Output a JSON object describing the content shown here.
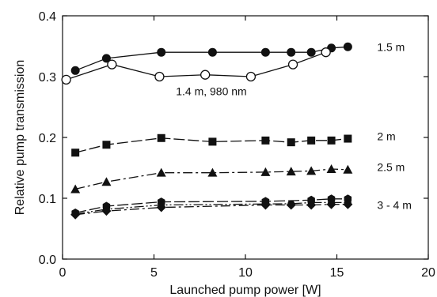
{
  "chart_data": {
    "type": "line",
    "title": "",
    "xlabel": "Launched pump power  [W]",
    "ylabel": "Relative pump transmission",
    "xlim": [
      0,
      20
    ],
    "ylim": [
      0.0,
      0.4
    ],
    "xticks": [
      "0",
      "5",
      "10",
      "15",
      "20"
    ],
    "yticks": [
      "0.0",
      "0.1",
      "0.2",
      "0.3",
      "0.4"
    ],
    "grid": false,
    "series": [
      {
        "name": "1.5 m",
        "marker": "filled-circle",
        "line": "solid",
        "x": [
          0.7,
          2.4,
          5.4,
          8.2,
          11.1,
          12.5,
          13.6,
          14.7,
          15.6
        ],
        "y": [
          0.31,
          0.33,
          0.34,
          0.34,
          0.34,
          0.34,
          0.34,
          0.347,
          0.349
        ]
      },
      {
        "name": "1.4 m, 980 nm",
        "marker": "open-circle",
        "line": "solid",
        "x": [
          0.2,
          2.7,
          5.3,
          7.8,
          10.3,
          12.6,
          14.4
        ],
        "y": [
          0.295,
          0.32,
          0.3,
          0.303,
          0.3,
          0.32,
          0.34
        ]
      },
      {
        "name": "2 m",
        "marker": "filled-square",
        "line": "long-dash",
        "x": [
          0.7,
          2.4,
          5.4,
          8.2,
          11.1,
          12.5,
          13.6,
          14.7,
          15.6
        ],
        "y": [
          0.175,
          0.188,
          0.199,
          0.193,
          0.195,
          0.192,
          0.195,
          0.195,
          0.198
        ]
      },
      {
        "name": "2.5 m",
        "marker": "filled-triangle",
        "line": "dash-dot",
        "x": [
          0.7,
          2.4,
          5.4,
          8.2,
          11.1,
          12.5,
          13.6,
          14.7,
          15.6
        ],
        "y": [
          0.115,
          0.127,
          0.142,
          0.142,
          0.143,
          0.144,
          0.145,
          0.148,
          0.147
        ]
      },
      {
        "name": "3 - 4 m (hexagon)",
        "marker": "filled-hexagon",
        "line": "long-dash",
        "x": [
          0.7,
          2.4,
          5.4,
          11.1,
          13.6,
          14.7,
          15.6
        ],
        "y": [
          0.076,
          0.087,
          0.094,
          0.095,
          0.097,
          0.099,
          0.099
        ]
      },
      {
        "name": "3 - 4 m (circle)",
        "marker": "filled-circle-small",
        "line": "dash-dot-dot",
        "x": [
          0.7,
          2.4,
          5.4,
          12.5,
          13.6,
          14.7,
          15.6
        ],
        "y": [
          0.074,
          0.082,
          0.089,
          0.091,
          0.093,
          0.093,
          0.093
        ]
      },
      {
        "name": "3 - 4 m (diamond)",
        "marker": "filled-diamond",
        "line": "dash-dot",
        "x": [
          0.7,
          2.4,
          5.4,
          11.1,
          12.5,
          13.6,
          14.7,
          15.6
        ],
        "y": [
          0.073,
          0.079,
          0.085,
          0.089,
          0.089,
          0.089,
          0.09,
          0.09
        ]
      }
    ],
    "annotations": [
      {
        "text": "1.5 m",
        "x": 17.2,
        "y": 0.349
      },
      {
        "text": "1.4 m, 980 nm",
        "x": 6.2,
        "y": 0.276
      },
      {
        "text": "2 m",
        "x": 17.2,
        "y": 0.202
      },
      {
        "text": "2.5 m",
        "x": 17.2,
        "y": 0.151
      },
      {
        "text": "3 - 4 m",
        "x": 17.2,
        "y": 0.089
      }
    ]
  }
}
